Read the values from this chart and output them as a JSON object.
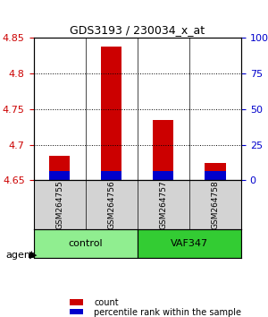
{
  "title": "GDS3193 / 230034_x_at",
  "samples": [
    "GSM264755",
    "GSM264756",
    "GSM264757",
    "GSM264758"
  ],
  "groups": [
    "control",
    "control",
    "VAF347",
    "VAF347"
  ],
  "group_colors": {
    "control": "#90EE90",
    "VAF347": "#00CC00"
  },
  "bar_bottom": 4.65,
  "red_values": [
    4.685,
    4.838,
    4.735,
    4.675
  ],
  "blue_values": [
    4.663,
    4.663,
    4.663,
    4.663
  ],
  "ylim_left": [
    4.65,
    4.85
  ],
  "ylim_right": [
    0,
    100
  ],
  "yticks_left": [
    4.65,
    4.7,
    4.75,
    4.8,
    4.85
  ],
  "yticks_right": [
    0,
    25,
    50,
    75,
    100
  ],
  "ytick_labels_right": [
    "0",
    "25",
    "50",
    "75",
    "100%"
  ],
  "left_tick_color": "#CC0000",
  "right_tick_color": "#0000CC",
  "bar_width": 0.4,
  "red_color": "#CC0000",
  "blue_color": "#0000CC",
  "legend_red": "count",
  "legend_blue": "percentile rank within the sample",
  "agent_label": "agent",
  "light_green": "#90EE90",
  "dark_green": "#33CC33"
}
